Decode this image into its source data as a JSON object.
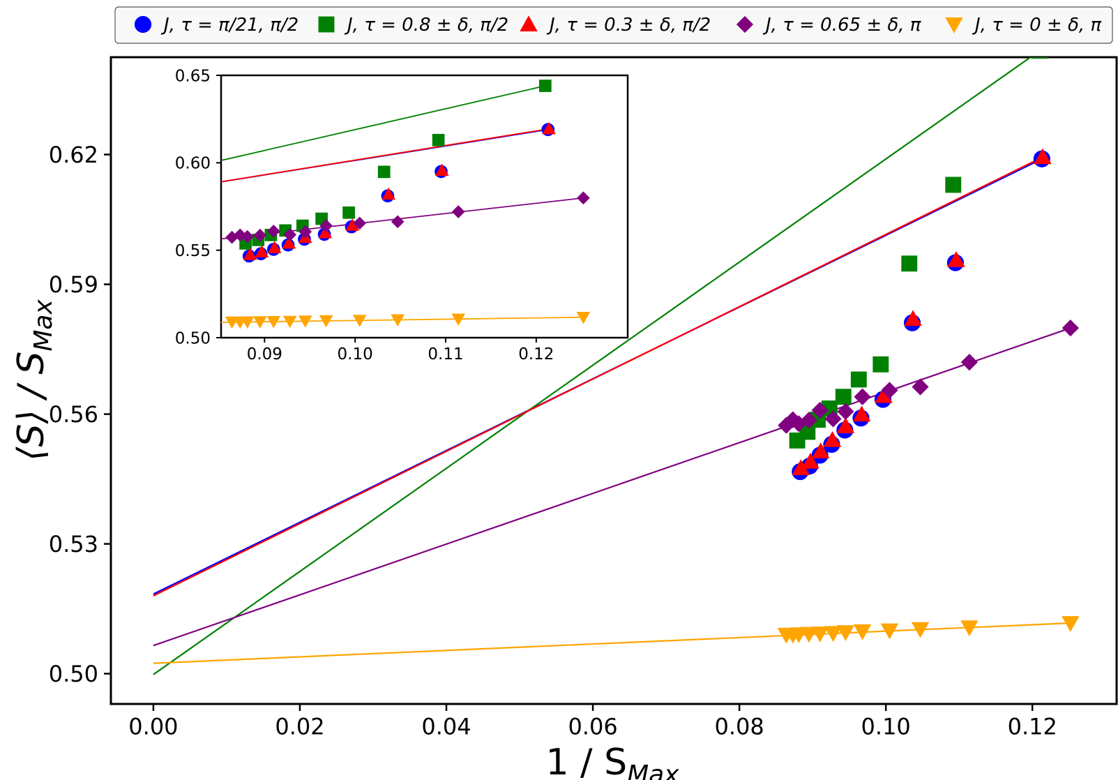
{
  "chart_data": {
    "type": "scatter",
    "title": "",
    "xlabel": "1 / S",
    "xlabel_sub": "Max",
    "ylabel": "⟨S⟩ / S",
    "ylabel_sub": "Max",
    "xlim": [
      -0.0058,
      0.1315
    ],
    "ylim": [
      0.493,
      0.6425
    ],
    "xticks": [
      0.0,
      0.02,
      0.04,
      0.06,
      0.08,
      0.1,
      0.12
    ],
    "xtick_labels": [
      "0.00",
      "0.02",
      "0.04",
      "0.06",
      "0.08",
      "0.10",
      "0.12"
    ],
    "yticks": [
      0.5,
      0.53,
      0.56,
      0.59,
      0.62
    ],
    "ytick_labels": [
      "0.50",
      "0.53",
      "0.56",
      "0.59",
      "0.62"
    ],
    "grid": false,
    "legend_position": "top-outside",
    "series": [
      {
        "name": "J,  τ = π/21, π/2",
        "color": "#0000ff",
        "marker": "circle",
        "x": [
          0.0883,
          0.0896,
          0.091,
          0.0926,
          0.0944,
          0.0966,
          0.0996,
          0.1036,
          0.1095,
          0.1213
        ],
        "y": [
          0.5467,
          0.548,
          0.5505,
          0.553,
          0.5563,
          0.5591,
          0.5634,
          0.5811,
          0.595,
          0.619
        ],
        "fit": {
          "x": [
            0.0,
            0.1213
          ],
          "y": [
            0.5184,
            0.619
          ]
        }
      },
      {
        "name": "J,  τ = 0.8 ± δ, π/2",
        "color": "#008000",
        "marker": "square",
        "x": [
          0.0879,
          0.0893,
          0.0907,
          0.0923,
          0.0942,
          0.0963,
          0.0993,
          0.1032,
          0.1092,
          0.121
        ],
        "y": [
          0.5539,
          0.5559,
          0.5587,
          0.5613,
          0.564,
          0.568,
          0.5715,
          0.5948,
          0.613,
          0.644
        ],
        "fit": {
          "x": [
            0.0,
            0.121
          ],
          "y": [
            0.4998,
            0.644
          ]
        }
      },
      {
        "name": "J,  τ = 0.3 ± δ, π/2",
        "color": "#ff0000",
        "marker": "triangle-up",
        "x": [
          0.0884,
          0.0897,
          0.0911,
          0.0927,
          0.0945,
          0.0967,
          0.0997,
          0.1037,
          0.1096,
          0.1214
        ],
        "y": [
          0.5475,
          0.549,
          0.5514,
          0.554,
          0.5572,
          0.5599,
          0.5642,
          0.582,
          0.5956,
          0.6194
        ],
        "fit": {
          "x": [
            0.0,
            0.1214
          ],
          "y": [
            0.518,
            0.6194
          ]
        }
      },
      {
        "name": "J,  τ = 0.65 ± δ, π",
        "color": "#800080",
        "marker": "diamond",
        "x": [
          0.0864,
          0.0873,
          0.0881,
          0.0895,
          0.091,
          0.0928,
          0.0945,
          0.0968,
          0.1005,
          0.1047,
          0.1114,
          0.1252
        ],
        "y": [
          0.5574,
          0.5587,
          0.5578,
          0.5586,
          0.5609,
          0.5589,
          0.5606,
          0.564,
          0.5655,
          0.5663,
          0.572,
          0.5799
        ],
        "fit": {
          "x": [
            0.0,
            0.1252
          ],
          "y": [
            0.5065,
            0.5799
          ]
        }
      },
      {
        "name": "J,  τ = 0 ± δ, π",
        "color": "#ffa500",
        "marker": "triangle-down",
        "x": [
          0.0864,
          0.0873,
          0.0881,
          0.0895,
          0.091,
          0.0928,
          0.0945,
          0.0968,
          0.1005,
          0.1047,
          0.1114,
          0.1252
        ],
        "y": [
          0.509,
          0.509,
          0.5091,
          0.5092,
          0.5093,
          0.5094,
          0.5096,
          0.5098,
          0.51,
          0.5103,
          0.5107,
          0.5117
        ],
        "fit": {
          "x": [
            0.0,
            0.1252
          ],
          "y": [
            0.5024,
            0.5117
          ]
        }
      }
    ],
    "inset": {
      "xlim": [
        0.0852,
        0.1301
      ],
      "ylim": [
        0.5,
        0.65
      ],
      "xticks": [
        0.09,
        0.1,
        0.11,
        0.12
      ],
      "xtick_labels": [
        "0.09",
        "0.10",
        "0.11",
        "0.12"
      ],
      "yticks": [
        0.5,
        0.55,
        0.6,
        0.65
      ],
      "ytick_labels": [
        "0.50",
        "0.55",
        "0.60",
        "0.65"
      ]
    }
  }
}
